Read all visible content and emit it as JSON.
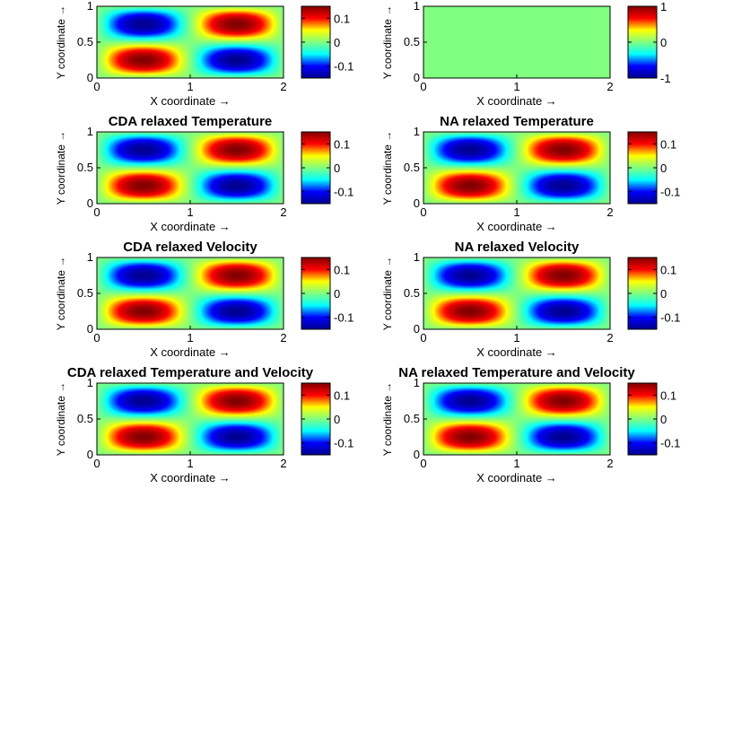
{
  "figure": {
    "x_axis_label": "X coordinate",
    "y_axis_label": "Y coordinate",
    "arrow": "→"
  },
  "colormap": [
    "#00008f",
    "#0000ff",
    "#00ffff",
    "#80ff80",
    "#ffff00",
    "#ff0000",
    "#800000"
  ],
  "chart_data": [
    {
      "type": "heatmap",
      "title": "",
      "xlabel": "X coordinate →",
      "ylabel": "Y coordinate →",
      "xlim": [
        0,
        2
      ],
      "ylim": [
        0,
        1
      ],
      "xticks": [
        "0",
        "1",
        "2"
      ],
      "yticks": [
        "0",
        "0.5",
        "1"
      ],
      "field": "sin(pi*x)*sin(2*pi*y)*0.15",
      "field_range": [
        -0.15,
        0.15
      ],
      "clim": [
        -0.15,
        0.15
      ],
      "colorbar_ticks": [
        "0.1",
        "0",
        "-0.1"
      ],
      "colorbar_values": [
        0.1,
        0,
        -0.1
      ]
    },
    {
      "type": "heatmap",
      "title": "",
      "xlabel": "X coordinate →",
      "ylabel": "Y coordinate →",
      "xlim": [
        0,
        2
      ],
      "ylim": [
        0,
        1
      ],
      "xticks": [
        "0",
        "1",
        "2"
      ],
      "yticks": [
        "0",
        "0.5",
        "1"
      ],
      "field": "constant 0 (uniform field)",
      "constant_value": 0,
      "clim": [
        -1,
        1
      ],
      "colorbar_ticks": [
        "1",
        "0",
        "-1"
      ],
      "colorbar_values": [
        1,
        0,
        -1
      ]
    },
    {
      "type": "heatmap",
      "title": "CDA relaxed Temperature",
      "xlabel": "X coordinate →",
      "ylabel": "Y coordinate →",
      "xlim": [
        0,
        2
      ],
      "ylim": [
        0,
        1
      ],
      "xticks": [
        "0",
        "1",
        "2"
      ],
      "yticks": [
        "0",
        "0.5",
        "1"
      ],
      "field": "sin(pi*x)*sin(2*pi*y)*0.15",
      "field_range": [
        -0.15,
        0.15
      ],
      "clim": [
        -0.15,
        0.15
      ],
      "colorbar_ticks": [
        "0.1",
        "0",
        "-0.1"
      ],
      "colorbar_values": [
        0.1,
        0,
        -0.1
      ]
    },
    {
      "type": "heatmap",
      "title": "NA relaxed Temperature",
      "xlabel": "X coordinate →",
      "ylabel": "Y coordinate →",
      "xlim": [
        0,
        2
      ],
      "ylim": [
        0,
        1
      ],
      "xticks": [
        "0",
        "1",
        "2"
      ],
      "yticks": [
        "0",
        "0.5",
        "1"
      ],
      "field": "sin(pi*x)*sin(2*pi*y)*0.15",
      "field_range": [
        -0.15,
        0.15
      ],
      "clim": [
        -0.15,
        0.15
      ],
      "colorbar_ticks": [
        "0.1",
        "0",
        "-0.1"
      ],
      "colorbar_values": [
        0.1,
        0,
        -0.1
      ]
    },
    {
      "type": "heatmap",
      "title": "CDA relaxed Velocity",
      "xlabel": "X coordinate →",
      "ylabel": "Y coordinate →",
      "xlim": [
        0,
        2
      ],
      "ylim": [
        0,
        1
      ],
      "xticks": [
        "0",
        "1",
        "2"
      ],
      "yticks": [
        "0",
        "0.5",
        "1"
      ],
      "field": "sin(pi*x)*sin(2*pi*y)*0.15",
      "field_range": [
        -0.15,
        0.15
      ],
      "clim": [
        -0.15,
        0.15
      ],
      "colorbar_ticks": [
        "0.1",
        "0",
        "-0.1"
      ],
      "colorbar_values": [
        0.1,
        0,
        -0.1
      ]
    },
    {
      "type": "heatmap",
      "title": "NA relaxed Velocity",
      "xlabel": "X coordinate →",
      "ylabel": "Y coordinate →",
      "xlim": [
        0,
        2
      ],
      "ylim": [
        0,
        1
      ],
      "xticks": [
        "0",
        "1",
        "2"
      ],
      "yticks": [
        "0",
        "0.5",
        "1"
      ],
      "field": "sin(pi*x)*sin(2*pi*y)*0.15",
      "field_range": [
        -0.15,
        0.15
      ],
      "clim": [
        -0.15,
        0.15
      ],
      "colorbar_ticks": [
        "0.1",
        "0",
        "-0.1"
      ],
      "colorbar_values": [
        0.1,
        0,
        -0.1
      ]
    },
    {
      "type": "heatmap",
      "title": "CDA relaxed Temperature and Velocity",
      "xlabel": "X coordinate →",
      "ylabel": "Y coordinate →",
      "xlim": [
        0,
        2
      ],
      "ylim": [
        0,
        1
      ],
      "xticks": [
        "0",
        "1",
        "2"
      ],
      "yticks": [
        "0",
        "0.5",
        "1"
      ],
      "field": "sin(pi*x)*sin(2*pi*y)*0.15",
      "field_range": [
        -0.15,
        0.15
      ],
      "clim": [
        -0.15,
        0.15
      ],
      "colorbar_ticks": [
        "0.1",
        "0",
        "-0.1"
      ],
      "colorbar_values": [
        0.1,
        0,
        -0.1
      ]
    },
    {
      "type": "heatmap",
      "title": "NA relaxed Temperature and Velocity",
      "xlabel": "X coordinate →",
      "ylabel": "Y coordinate →",
      "xlim": [
        0,
        2
      ],
      "ylim": [
        0,
        1
      ],
      "xticks": [
        "0",
        "1",
        "2"
      ],
      "yticks": [
        "0",
        "0.5",
        "1"
      ],
      "field": "sin(pi*x)*sin(2*pi*y)*0.15",
      "field_range": [
        -0.15,
        0.15
      ],
      "clim": [
        -0.15,
        0.15
      ],
      "colorbar_ticks": [
        "0.1",
        "0",
        "-0.1"
      ],
      "colorbar_values": [
        0.1,
        0,
        -0.1
      ]
    }
  ]
}
